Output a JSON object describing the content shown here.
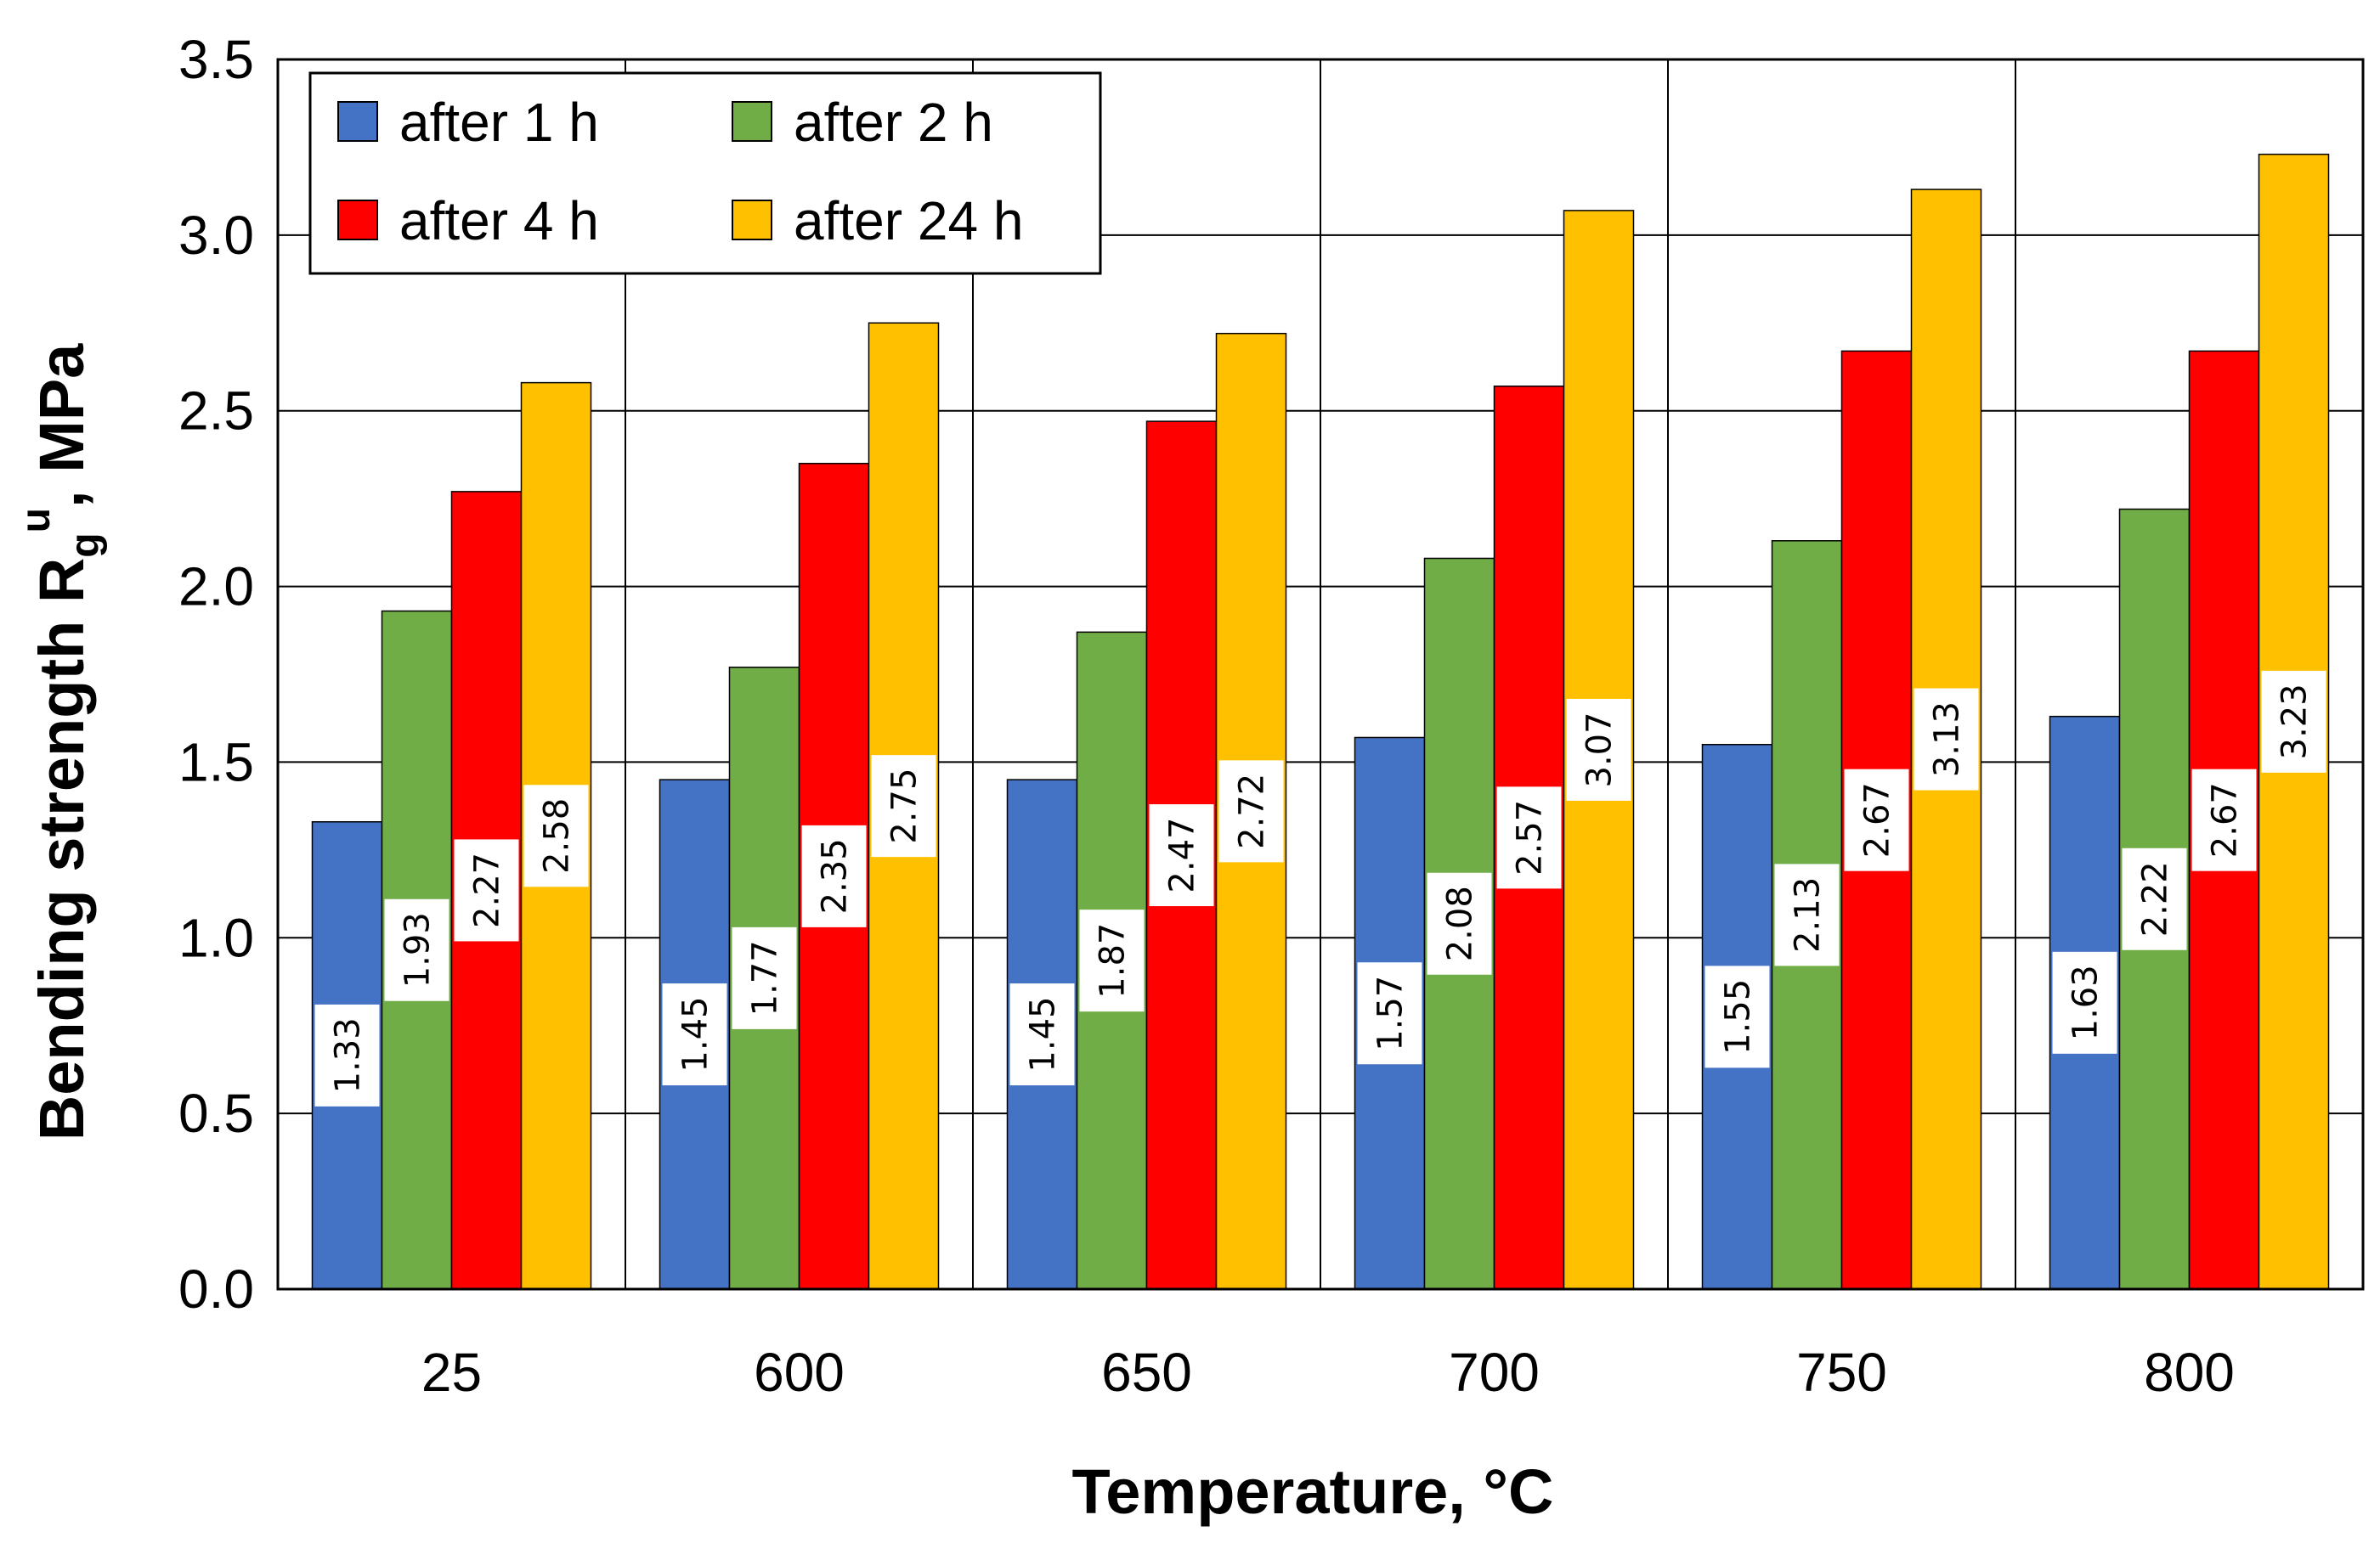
{
  "chart_data": {
    "type": "bar",
    "title": "",
    "xlabel": "Temperature, °C",
    "ylabel": {
      "main": "Bending strength R",
      "subscript": "g",
      "superscript": "u",
      "suffix": ", MPa"
    },
    "categories": [
      "25",
      "600",
      "650",
      "700",
      "750",
      "800"
    ],
    "ylim": [
      0,
      3.5
    ],
    "yticks": [
      "0.0",
      "0.5",
      "1.0",
      "1.5",
      "2.0",
      "2.5",
      "3.0",
      "3.5"
    ],
    "grid": true,
    "legend_position": "top-left",
    "series": [
      {
        "name": "after 1 h",
        "color": "#4472C4",
        "values": [
          1.33,
          1.45,
          1.45,
          1.57,
          1.55,
          1.63
        ],
        "labels": [
          "1.33",
          "1.45",
          "1.45",
          "1.57",
          "1.55",
          "1.63"
        ]
      },
      {
        "name": "after 2 h",
        "color": "#70AD47",
        "values": [
          1.93,
          1.77,
          1.87,
          2.08,
          2.13,
          2.22
        ],
        "labels": [
          "1.93",
          "1.77",
          "1.87",
          "2.08",
          "2.13",
          "2.22"
        ]
      },
      {
        "name": "after 4 h",
        "color": "#FF0000",
        "values": [
          2.27,
          2.35,
          2.47,
          2.57,
          2.67,
          2.67
        ],
        "labels": [
          "2.27",
          "2.35",
          "2.47",
          "2.57",
          "2.67",
          "2.67"
        ]
      },
      {
        "name": "after 24 h",
        "color": "#FFC000",
        "values": [
          2.58,
          2.75,
          2.72,
          3.07,
          3.13,
          3.23
        ],
        "labels": [
          "2.58",
          "2.75",
          "2.72",
          "3.07",
          "3.13",
          "3.23"
        ]
      }
    ]
  }
}
